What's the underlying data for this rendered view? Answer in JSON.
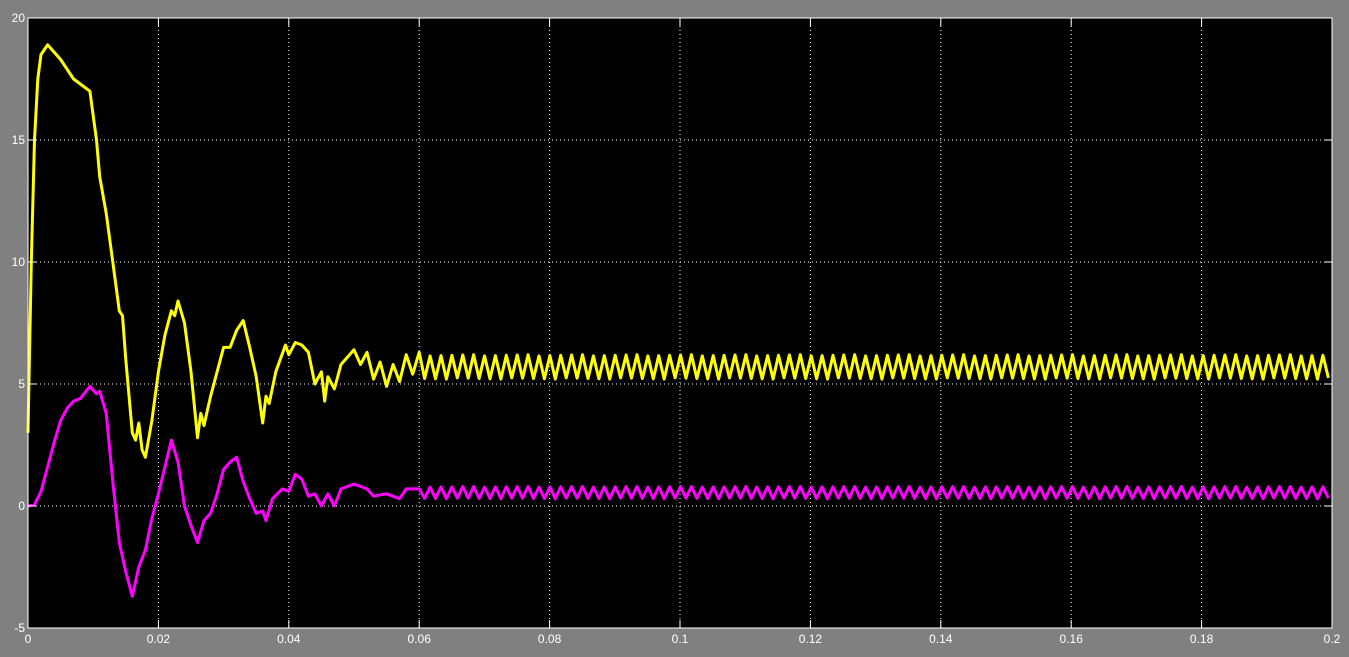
{
  "chart_data": {
    "type": "line",
    "title": "",
    "xlabel": "",
    "ylabel": "",
    "xlim": [
      0,
      0.2
    ],
    "ylim": [
      -5,
      20
    ],
    "grid": true,
    "background": "#000000",
    "frame_background": "#808080",
    "x_ticks": [
      "0",
      "0.02",
      "0.04",
      "0.06",
      "0.08",
      "0.1",
      "0.12",
      "0.14",
      "0.16",
      "0.18",
      "0.2"
    ],
    "y_ticks": [
      "-5",
      "0",
      "5",
      "10",
      "15",
      "20"
    ],
    "series": [
      {
        "color": "#ffff00",
        "points": [
          [
            0,
            3
          ],
          [
            0.0005,
            10
          ],
          [
            0.001,
            15
          ],
          [
            0.0015,
            17.5
          ],
          [
            0.002,
            18.5
          ],
          [
            0.003,
            18.9
          ],
          [
            0.005,
            18.3
          ],
          [
            0.007,
            17.5
          ],
          [
            0.0095,
            17
          ],
          [
            0.0105,
            15
          ],
          [
            0.011,
            13.5
          ],
          [
            0.012,
            12
          ],
          [
            0.013,
            10
          ],
          [
            0.014,
            8
          ],
          [
            0.0145,
            7.8
          ],
          [
            0.015,
            6
          ],
          [
            0.016,
            3
          ],
          [
            0.0165,
            2.7
          ],
          [
            0.017,
            3.4
          ],
          [
            0.0175,
            2.3
          ],
          [
            0.018,
            2.0
          ],
          [
            0.019,
            3.5
          ],
          [
            0.02,
            5.5
          ],
          [
            0.021,
            7
          ],
          [
            0.022,
            8.0
          ],
          [
            0.0225,
            7.8
          ],
          [
            0.023,
            8.4
          ],
          [
            0.024,
            7.5
          ],
          [
            0.025,
            5.5
          ],
          [
            0.026,
            2.8
          ],
          [
            0.0265,
            3.8
          ],
          [
            0.027,
            3.3
          ],
          [
            0.028,
            4.5
          ],
          [
            0.03,
            6.5
          ],
          [
            0.031,
            6.5
          ],
          [
            0.032,
            7.2
          ],
          [
            0.033,
            7.6
          ],
          [
            0.034,
            6.5
          ],
          [
            0.035,
            5.3
          ],
          [
            0.036,
            3.4
          ],
          [
            0.0365,
            4.5
          ],
          [
            0.037,
            4.2
          ],
          [
            0.038,
            5.5
          ],
          [
            0.0395,
            6.6
          ],
          [
            0.04,
            6.2
          ],
          [
            0.041,
            6.7
          ],
          [
            0.042,
            6.6
          ],
          [
            0.043,
            6.3
          ],
          [
            0.044,
            5.0
          ],
          [
            0.045,
            5.5
          ],
          [
            0.0455,
            4.3
          ],
          [
            0.046,
            5.3
          ],
          [
            0.047,
            4.8
          ],
          [
            0.048,
            5.8
          ],
          [
            0.05,
            6.4
          ],
          [
            0.051,
            5.8
          ],
          [
            0.052,
            6.3
          ],
          [
            0.053,
            5.2
          ],
          [
            0.054,
            5.9
          ],
          [
            0.055,
            4.9
          ],
          [
            0.056,
            5.8
          ],
          [
            0.057,
            5.1
          ],
          [
            0.058,
            6.2
          ],
          [
            0.059,
            5.4
          ],
          [
            0.06,
            6.3
          ]
        ],
        "steady_state": {
          "from": 0.06,
          "to": 0.2,
          "mean": 5.7,
          "amplitude": 0.5,
          "period": 0.00167
        }
      },
      {
        "color": "#ff00ff",
        "points": [
          [
            0,
            0
          ],
          [
            0.001,
            0.05
          ],
          [
            0.002,
            0.6
          ],
          [
            0.003,
            1.6
          ],
          [
            0.004,
            2.6
          ],
          [
            0.005,
            3.5
          ],
          [
            0.006,
            4.0
          ],
          [
            0.007,
            4.3
          ],
          [
            0.008,
            4.4
          ],
          [
            0.0095,
            4.9
          ],
          [
            0.0105,
            4.6
          ],
          [
            0.011,
            4.7
          ],
          [
            0.012,
            3.8
          ],
          [
            0.013,
            1.0
          ],
          [
            0.014,
            -1.5
          ],
          [
            0.015,
            -2.7
          ],
          [
            0.016,
            -3.7
          ],
          [
            0.017,
            -2.5
          ],
          [
            0.018,
            -1.8
          ],
          [
            0.019,
            -0.5
          ],
          [
            0.02,
            0.5
          ],
          [
            0.021,
            1.6
          ],
          [
            0.022,
            2.7
          ],
          [
            0.023,
            1.8
          ],
          [
            0.024,
            0
          ],
          [
            0.025,
            -0.8
          ],
          [
            0.026,
            -1.5
          ],
          [
            0.027,
            -0.6
          ],
          [
            0.028,
            -0.3
          ],
          [
            0.029,
            0.5
          ],
          [
            0.03,
            1.5
          ],
          [
            0.031,
            1.8
          ],
          [
            0.032,
            2.0
          ],
          [
            0.033,
            1.0
          ],
          [
            0.034,
            0.3
          ],
          [
            0.035,
            -0.3
          ],
          [
            0.036,
            -0.2
          ],
          [
            0.0365,
            -0.6
          ],
          [
            0.0375,
            0.3
          ],
          [
            0.039,
            0.7
          ],
          [
            0.04,
            0.6
          ],
          [
            0.041,
            1.3
          ],
          [
            0.042,
            1.1
          ],
          [
            0.043,
            0.4
          ],
          [
            0.044,
            0.5
          ],
          [
            0.045,
            0
          ],
          [
            0.046,
            0.5
          ],
          [
            0.047,
            0
          ],
          [
            0.048,
            0.7
          ],
          [
            0.05,
            0.9
          ],
          [
            0.052,
            0.7
          ],
          [
            0.053,
            0.4
          ],
          [
            0.055,
            0.5
          ],
          [
            0.057,
            0.3
          ],
          [
            0.058,
            0.7
          ],
          [
            0.06,
            0.7
          ]
        ],
        "steady_state": {
          "from": 0.06,
          "to": 0.2,
          "mean": 0.55,
          "amplitude": 0.25,
          "period": 0.00167
        }
      }
    ]
  }
}
